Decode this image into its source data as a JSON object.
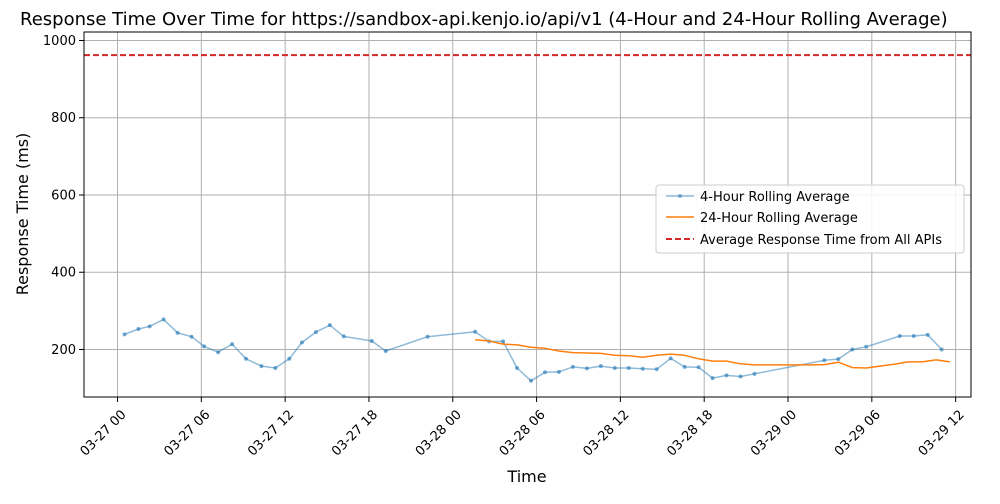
{
  "chart_data": {
    "type": "line",
    "title": "Response Time Over Time for https://sandbox-api.kenjo.io/api/v1 (4-Hour and 24-Hour Rolling Average)",
    "xlabel": "Time",
    "ylabel": "Response Time (ms)",
    "x_ticks": [
      "03-27 00",
      "03-27 06",
      "03-27 12",
      "03-27 18",
      "03-28 00",
      "03-28 06",
      "03-28 12",
      "03-28 18",
      "03-29 00",
      "03-29 06",
      "03-29 12"
    ],
    "x_tick_hours": [
      0,
      6,
      12,
      18,
      24,
      30,
      36,
      42,
      48,
      54,
      60
    ],
    "xlim": [
      -2.4,
      61.1
    ],
    "y_ticks": [
      "200",
      "400",
      "600",
      "800",
      "1000"
    ],
    "y_tick_values": [
      200,
      400,
      600,
      800,
      1000
    ],
    "ylim": [
      77,
      1022
    ],
    "grid": true,
    "legend_position": "center-right",
    "series": [
      {
        "name": "4-Hour Rolling Average",
        "color": "#1f77b4",
        "marker": true,
        "x_hours": [
          0.5,
          1.5,
          2.3,
          3.3,
          4.3,
          5.3,
          6.2,
          7.2,
          8.2,
          9.2,
          10.3,
          11.3,
          12.3,
          13.2,
          14.2,
          15.2,
          16.2,
          18.2,
          19.2,
          22.2,
          25.6,
          26.6,
          27.6,
          28.6,
          29.6,
          30.6,
          31.6,
          32.6,
          33.6,
          34.6,
          35.6,
          36.6,
          37.6,
          38.6,
          39.6,
          40.6,
          41.6,
          42.6,
          43.6,
          44.6,
          45.6,
          50.6,
          51.6,
          52.6,
          53.6,
          56.0,
          57.0,
          58.0,
          59.0
        ],
        "values": [
          239,
          253,
          260,
          278,
          243,
          233,
          208,
          193,
          214,
          176,
          157,
          152,
          176,
          218,
          245,
          263,
          234,
          222,
          196,
          233,
          246,
          221,
          221,
          152,
          119,
          141,
          142,
          155,
          151,
          157,
          152,
          152,
          150,
          149,
          177,
          155,
          154,
          126,
          133,
          130,
          137,
          172,
          175,
          200,
          207,
          235,
          235,
          238,
          200
        ]
      },
      {
        "name": "24-Hour Rolling Average",
        "color": "#ff7f0e",
        "marker": false,
        "x_hours": [
          25.6,
          26.6,
          27.6,
          28.6,
          29.6,
          30.6,
          31.6,
          32.6,
          33.6,
          34.6,
          35.6,
          36.6,
          37.6,
          38.6,
          39.6,
          40.6,
          41.6,
          42.6,
          43.6,
          44.6,
          45.6,
          46.6,
          47.6,
          48.6,
          49.6,
          50.6,
          51.6,
          52.6,
          53.6,
          54.6,
          55.6,
          56.6,
          57.6,
          58.6,
          59.6
        ],
        "values": [
          225,
          222,
          214,
          212,
          206,
          203,
          196,
          192,
          191,
          190,
          185,
          184,
          180,
          185,
          188,
          185,
          176,
          170,
          170,
          163,
          160,
          160,
          160,
          160,
          160,
          161,
          167,
          153,
          152,
          157,
          162,
          168,
          168,
          173,
          168
        ]
      },
      {
        "name": "Average Response Time from All APIs",
        "color": "#d62728",
        "dashed": true,
        "constant": 962
      }
    ]
  }
}
